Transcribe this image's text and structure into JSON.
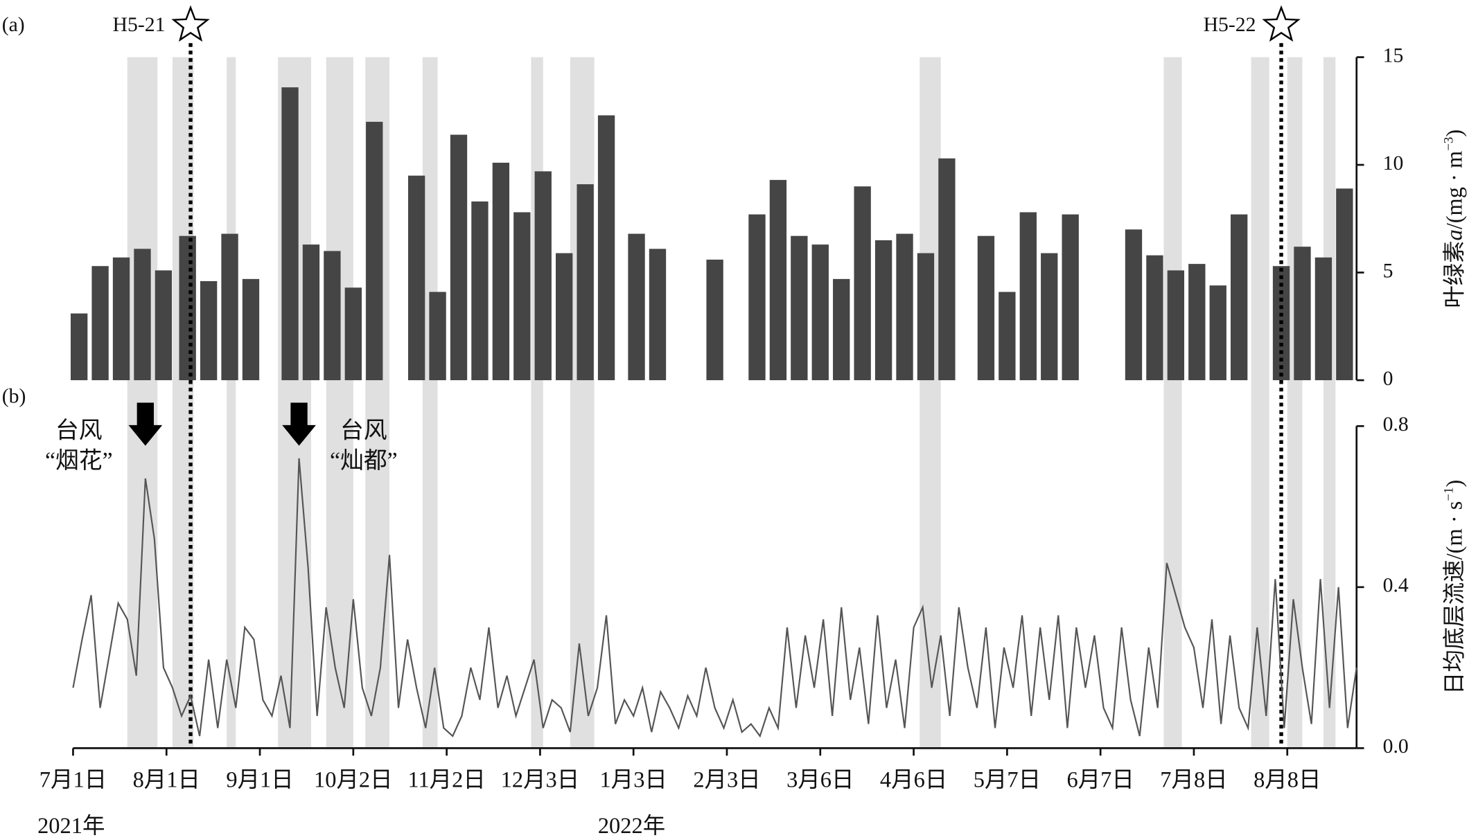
{
  "chart_data": [
    {
      "type": "bar",
      "panel_label": "(a)",
      "ylabel": [
        {
          "text": "叶绿素"
        },
        {
          "text": "a",
          "style": "italic"
        },
        {
          "text": "/(mg · m"
        },
        {
          "text": "−3",
          "style": "sup"
        },
        {
          "text": ")"
        }
      ],
      "xlim": [
        "2021-07-01",
        "2022-08-31"
      ],
      "ylim": [
        0,
        15
      ],
      "yticks": [
        0,
        5,
        10,
        15
      ],
      "color": "#454545",
      "x": [
        "2021-07-03",
        "2021-07-10",
        "2021-07-17",
        "2021-07-24",
        "2021-07-31",
        "2021-08-08",
        "2021-08-15",
        "2021-08-22",
        "2021-08-29",
        "2021-09-11",
        "2021-09-18",
        "2021-09-25",
        "2021-10-02",
        "2021-10-09",
        "2021-10-23",
        "2021-10-30",
        "2021-11-06",
        "2021-11-13",
        "2021-11-20",
        "2021-11-27",
        "2021-12-04",
        "2021-12-11",
        "2021-12-18",
        "2021-12-25",
        "2022-01-04",
        "2022-01-11",
        "2022-01-30",
        "2022-02-13",
        "2022-02-20",
        "2022-02-27",
        "2022-03-06",
        "2022-03-13",
        "2022-03-20",
        "2022-03-27",
        "2022-04-03",
        "2022-04-10",
        "2022-04-17",
        "2022-04-30",
        "2022-05-07",
        "2022-05-14",
        "2022-05-21",
        "2022-05-28",
        "2022-06-18",
        "2022-06-25",
        "2022-07-02",
        "2022-07-09",
        "2022-07-16",
        "2022-07-23",
        "2022-08-06",
        "2022-08-13",
        "2022-08-20",
        "2022-08-27"
      ],
      "values": [
        3.1,
        5.3,
        5.7,
        6.1,
        5.1,
        6.7,
        4.6,
        6.8,
        4.7,
        13.6,
        6.3,
        6.0,
        4.3,
        12.0,
        9.5,
        4.1,
        11.4,
        8.3,
        10.1,
        7.8,
        9.7,
        5.9,
        9.1,
        12.3,
        6.8,
        6.1,
        5.6,
        7.7,
        9.3,
        6.7,
        6.3,
        4.7,
        9.0,
        6.5,
        6.8,
        5.9,
        10.3,
        6.7,
        4.1,
        7.8,
        5.9,
        7.7,
        7.0,
        5.8,
        5.1,
        5.4,
        4.4,
        7.7,
        5.3,
        6.2,
        5.7,
        8.9
      ],
      "shade_color": "#e0e0e0",
      "shaded_periods": [
        [
          "2021-07-19",
          "2021-07-29"
        ],
        [
          "2021-08-03",
          "2021-08-10"
        ],
        [
          "2021-08-21",
          "2021-08-24"
        ],
        [
          "2021-09-07",
          "2021-09-18"
        ],
        [
          "2021-09-23",
          "2021-10-02"
        ],
        [
          "2021-10-06",
          "2021-10-14"
        ],
        [
          "2021-10-25",
          "2021-10-30"
        ],
        [
          "2021-11-30",
          "2021-12-04"
        ],
        [
          "2021-12-13",
          "2021-12-21"
        ],
        [
          "2022-04-08",
          "2022-04-15"
        ],
        [
          "2022-06-28",
          "2022-07-04"
        ],
        [
          "2022-07-27",
          "2022-08-02"
        ],
        [
          "2022-08-08",
          "2022-08-13"
        ],
        [
          "2022-08-20",
          "2022-08-24"
        ]
      ],
      "markers": [
        {
          "label": "H5-21",
          "date": "2021-08-09"
        },
        {
          "label": "H5-22",
          "date": "2022-08-06"
        }
      ]
    },
    {
      "type": "line",
      "panel_label": "(b)",
      "ylabel": [
        {
          "text": "日均底层流速/(m · s"
        },
        {
          "text": "−1",
          "style": "sup"
        },
        {
          "text": ")"
        }
      ],
      "xlim": [
        "2021-07-01",
        "2022-08-31"
      ],
      "ylim": [
        0,
        0.8
      ],
      "yticks": [
        {
          "value": 0,
          "label": "0.0"
        },
        {
          "value": 0.4,
          "label": "0.4"
        },
        {
          "value": 0.8,
          "label": "0.8"
        }
      ],
      "xticks": [
        {
          "value": "2021-07-01",
          "label": "7月1日"
        },
        {
          "value": "2021-08-01",
          "label": "8月1日"
        },
        {
          "value": "2021-09-01",
          "label": "9月1日"
        },
        {
          "value": "2021-10-02",
          "label": "10月2日"
        },
        {
          "value": "2021-11-02",
          "label": "11月2日"
        },
        {
          "value": "2021-12-03",
          "label": "12月3日"
        },
        {
          "value": "2022-01-03",
          "label": "1月3日"
        },
        {
          "value": "2022-02-03",
          "label": "2月3日"
        },
        {
          "value": "2022-03-06",
          "label": "3月6日"
        },
        {
          "value": "2022-04-06",
          "label": "4月6日"
        },
        {
          "value": "2022-05-07",
          "label": "5月7日"
        },
        {
          "value": "2022-06-07",
          "label": "6月7日"
        },
        {
          "value": "2022-07-08",
          "label": "7月8日"
        },
        {
          "value": "2022-08-08",
          "label": "8月8日"
        }
      ],
      "year_labels": [
        {
          "value": "2021-07-01",
          "label": "2021年"
        },
        {
          "value": "2022-01-03",
          "label": "2022年"
        }
      ],
      "color": "#555555",
      "x": [
        "2021-07-01",
        "2021-07-04",
        "2021-07-07",
        "2021-07-10",
        "2021-07-13",
        "2021-07-16",
        "2021-07-19",
        "2021-07-22",
        "2021-07-25",
        "2021-07-28",
        "2021-07-31",
        "2021-08-03",
        "2021-08-06",
        "2021-08-09",
        "2021-08-12",
        "2021-08-15",
        "2021-08-18",
        "2021-08-21",
        "2021-08-24",
        "2021-08-27",
        "2021-08-30",
        "2021-09-02",
        "2021-09-05",
        "2021-09-08",
        "2021-09-11",
        "2021-09-14",
        "2021-09-17",
        "2021-09-20",
        "2021-09-23",
        "2021-09-26",
        "2021-09-29",
        "2021-10-02",
        "2021-10-05",
        "2021-10-08",
        "2021-10-11",
        "2021-10-14",
        "2021-10-17",
        "2021-10-20",
        "2021-10-23",
        "2021-10-26",
        "2021-10-29",
        "2021-11-01",
        "2021-11-04",
        "2021-11-07",
        "2021-11-10",
        "2021-11-13",
        "2021-11-16",
        "2021-11-19",
        "2021-11-22",
        "2021-11-25",
        "2021-11-28",
        "2021-12-01",
        "2021-12-04",
        "2021-12-07",
        "2021-12-10",
        "2021-12-13",
        "2021-12-16",
        "2021-12-19",
        "2021-12-22",
        "2021-12-25",
        "2021-12-28",
        "2021-12-31",
        "2022-01-03",
        "2022-01-06",
        "2022-01-09",
        "2022-01-12",
        "2022-01-15",
        "2022-01-18",
        "2022-01-21",
        "2022-01-24",
        "2022-01-27",
        "2022-01-30",
        "2022-02-02",
        "2022-02-05",
        "2022-02-08",
        "2022-02-11",
        "2022-02-14",
        "2022-02-17",
        "2022-02-20",
        "2022-02-23",
        "2022-02-26",
        "2022-03-01",
        "2022-03-04",
        "2022-03-07",
        "2022-03-10",
        "2022-03-13",
        "2022-03-16",
        "2022-03-19",
        "2022-03-22",
        "2022-03-25",
        "2022-03-28",
        "2022-03-31",
        "2022-04-03",
        "2022-04-06",
        "2022-04-09",
        "2022-04-12",
        "2022-04-15",
        "2022-04-18",
        "2022-04-21",
        "2022-04-24",
        "2022-04-27",
        "2022-04-30",
        "2022-05-03",
        "2022-05-06",
        "2022-05-09",
        "2022-05-12",
        "2022-05-15",
        "2022-05-18",
        "2022-05-21",
        "2022-05-24",
        "2022-05-27",
        "2022-05-30",
        "2022-06-02",
        "2022-06-05",
        "2022-06-08",
        "2022-06-11",
        "2022-06-14",
        "2022-06-17",
        "2022-06-20",
        "2022-06-23",
        "2022-06-26",
        "2022-06-29",
        "2022-07-02",
        "2022-07-05",
        "2022-07-08",
        "2022-07-11",
        "2022-07-14",
        "2022-07-17",
        "2022-07-20",
        "2022-07-23",
        "2022-07-26",
        "2022-07-29",
        "2022-08-01",
        "2022-08-04",
        "2022-08-07",
        "2022-08-10",
        "2022-08-13",
        "2022-08-16",
        "2022-08-19",
        "2022-08-22",
        "2022-08-25",
        "2022-08-28",
        "2022-08-31"
      ],
      "values": [
        0.15,
        0.27,
        0.38,
        0.1,
        0.23,
        0.36,
        0.32,
        0.18,
        0.67,
        0.52,
        0.2,
        0.15,
        0.08,
        0.13,
        0.03,
        0.22,
        0.05,
        0.22,
        0.1,
        0.3,
        0.27,
        0.12,
        0.08,
        0.18,
        0.05,
        0.72,
        0.45,
        0.08,
        0.35,
        0.2,
        0.1,
        0.37,
        0.15,
        0.08,
        0.2,
        0.48,
        0.1,
        0.27,
        0.15,
        0.05,
        0.2,
        0.05,
        0.03,
        0.08,
        0.2,
        0.12,
        0.3,
        0.1,
        0.18,
        0.08,
        0.15,
        0.22,
        0.05,
        0.12,
        0.1,
        0.04,
        0.26,
        0.08,
        0.15,
        0.33,
        0.06,
        0.12,
        0.08,
        0.15,
        0.04,
        0.14,
        0.1,
        0.05,
        0.13,
        0.08,
        0.2,
        0.1,
        0.05,
        0.12,
        0.04,
        0.06,
        0.03,
        0.1,
        0.05,
        0.3,
        0.1,
        0.28,
        0.15,
        0.32,
        0.08,
        0.35,
        0.12,
        0.25,
        0.06,
        0.33,
        0.1,
        0.22,
        0.05,
        0.3,
        0.35,
        0.15,
        0.28,
        0.08,
        0.35,
        0.2,
        0.1,
        0.3,
        0.05,
        0.25,
        0.15,
        0.33,
        0.08,
        0.3,
        0.12,
        0.33,
        0.05,
        0.3,
        0.15,
        0.28,
        0.1,
        0.05,
        0.3,
        0.12,
        0.03,
        0.25,
        0.1,
        0.46,
        0.38,
        0.3,
        0.25,
        0.1,
        0.32,
        0.06,
        0.28,
        0.1,
        0.05,
        0.3,
        0.08,
        0.42,
        0.05,
        0.37,
        0.2,
        0.06,
        0.42,
        0.1,
        0.4,
        0.05,
        0.2
      ],
      "typhoons": [
        {
          "date": "2021-07-25",
          "lines": [
            "台风",
            "“烟花”"
          ]
        },
        {
          "date": "2021-09-14",
          "lines": [
            "台风",
            "“灿都”"
          ]
        }
      ]
    }
  ]
}
